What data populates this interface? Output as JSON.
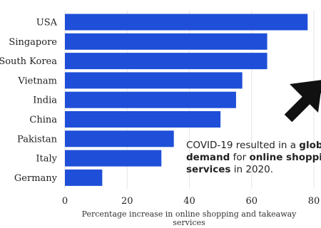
{
  "chart_data": {
    "type": "bar",
    "orientation": "horizontal",
    "categories": [
      "USA",
      "Singapore",
      "South Korea",
      "Vietnam",
      "India",
      "China",
      "Pakistan",
      "Italy",
      "Germany"
    ],
    "values": [
      78,
      65,
      65,
      57,
      55,
      50,
      35,
      31,
      12
    ],
    "xlabel": "Percentage increase in online shopping and takeaway services",
    "xlim": [
      0,
      80
    ],
    "xticks": [
      0,
      20,
      40,
      60,
      80
    ],
    "grid": true,
    "bar_color": "#1f4fd8",
    "annotation": {
      "segments": [
        {
          "text": "COVID-19 resulted in a ",
          "bold": false
        },
        {
          "text": "global",
          "bold": true
        },
        {
          "text": "demand",
          "bold": true,
          "newline": true
        },
        {
          "text": " for ",
          "bold": false
        },
        {
          "text": "online shopping",
          "bold": true
        },
        {
          "text": "services",
          "bold": true,
          "newline": true
        },
        {
          "text": " in 2020.",
          "bold": false
        }
      ],
      "arrow_icon": "arrow-up-right-icon",
      "arrow_color": "#111111"
    }
  }
}
